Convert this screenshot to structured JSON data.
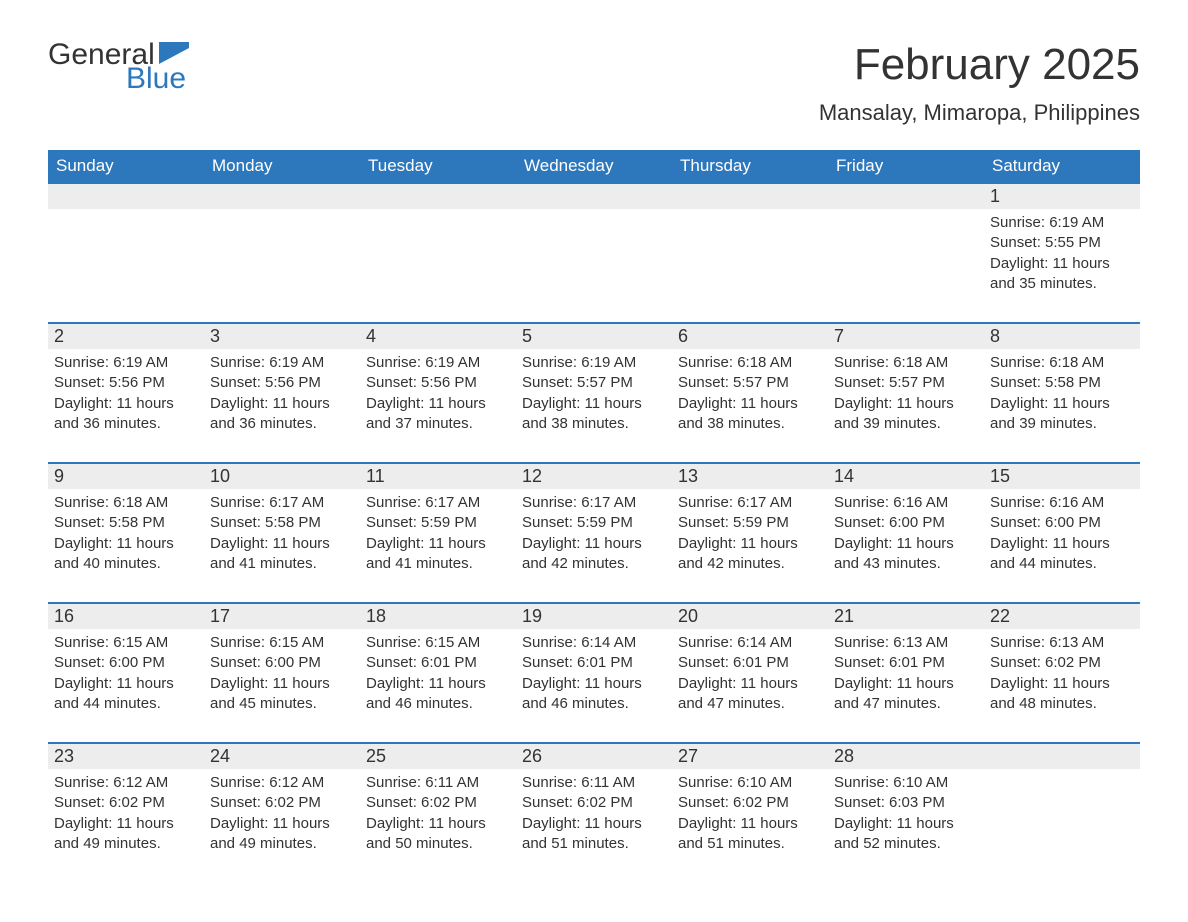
{
  "logo": {
    "general": "General",
    "blue": "Blue"
  },
  "title": "February 2025",
  "location": "Mansalay, Mimaropa, Philippines",
  "colors": {
    "header_bg": "#2d78bd",
    "header_text": "#ffffff",
    "daynum_bg": "#ededed",
    "row_border": "#2d78bd",
    "text": "#333333",
    "logo_blue": "#2d78bd"
  },
  "weekdays": [
    "Sunday",
    "Monday",
    "Tuesday",
    "Wednesday",
    "Thursday",
    "Friday",
    "Saturday"
  ],
  "layout": {
    "columns": 7,
    "rows": 5,
    "th_fontsize": 17,
    "daynum_fontsize": 18,
    "body_fontsize": 15,
    "title_fontsize": 44,
    "location_fontsize": 22
  },
  "weeks": [
    [
      {
        "day": "",
        "lines": []
      },
      {
        "day": "",
        "lines": []
      },
      {
        "day": "",
        "lines": []
      },
      {
        "day": "",
        "lines": []
      },
      {
        "day": "",
        "lines": []
      },
      {
        "day": "",
        "lines": []
      },
      {
        "day": "1",
        "lines": [
          "Sunrise: 6:19 AM",
          "Sunset: 5:55 PM",
          "Daylight: 11 hours and 35 minutes."
        ]
      }
    ],
    [
      {
        "day": "2",
        "lines": [
          "Sunrise: 6:19 AM",
          "Sunset: 5:56 PM",
          "Daylight: 11 hours and 36 minutes."
        ]
      },
      {
        "day": "3",
        "lines": [
          "Sunrise: 6:19 AM",
          "Sunset: 5:56 PM",
          "Daylight: 11 hours and 36 minutes."
        ]
      },
      {
        "day": "4",
        "lines": [
          "Sunrise: 6:19 AM",
          "Sunset: 5:56 PM",
          "Daylight: 11 hours and 37 minutes."
        ]
      },
      {
        "day": "5",
        "lines": [
          "Sunrise: 6:19 AM",
          "Sunset: 5:57 PM",
          "Daylight: 11 hours and 38 minutes."
        ]
      },
      {
        "day": "6",
        "lines": [
          "Sunrise: 6:18 AM",
          "Sunset: 5:57 PM",
          "Daylight: 11 hours and 38 minutes."
        ]
      },
      {
        "day": "7",
        "lines": [
          "Sunrise: 6:18 AM",
          "Sunset: 5:57 PM",
          "Daylight: 11 hours and 39 minutes."
        ]
      },
      {
        "day": "8",
        "lines": [
          "Sunrise: 6:18 AM",
          "Sunset: 5:58 PM",
          "Daylight: 11 hours and 39 minutes."
        ]
      }
    ],
    [
      {
        "day": "9",
        "lines": [
          "Sunrise: 6:18 AM",
          "Sunset: 5:58 PM",
          "Daylight: 11 hours and 40 minutes."
        ]
      },
      {
        "day": "10",
        "lines": [
          "Sunrise: 6:17 AM",
          "Sunset: 5:58 PM",
          "Daylight: 11 hours and 41 minutes."
        ]
      },
      {
        "day": "11",
        "lines": [
          "Sunrise: 6:17 AM",
          "Sunset: 5:59 PM",
          "Daylight: 11 hours and 41 minutes."
        ]
      },
      {
        "day": "12",
        "lines": [
          "Sunrise: 6:17 AM",
          "Sunset: 5:59 PM",
          "Daylight: 11 hours and 42 minutes."
        ]
      },
      {
        "day": "13",
        "lines": [
          "Sunrise: 6:17 AM",
          "Sunset: 5:59 PM",
          "Daylight: 11 hours and 42 minutes."
        ]
      },
      {
        "day": "14",
        "lines": [
          "Sunrise: 6:16 AM",
          "Sunset: 6:00 PM",
          "Daylight: 11 hours and 43 minutes."
        ]
      },
      {
        "day": "15",
        "lines": [
          "Sunrise: 6:16 AM",
          "Sunset: 6:00 PM",
          "Daylight: 11 hours and 44 minutes."
        ]
      }
    ],
    [
      {
        "day": "16",
        "lines": [
          "Sunrise: 6:15 AM",
          "Sunset: 6:00 PM",
          "Daylight: 11 hours and 44 minutes."
        ]
      },
      {
        "day": "17",
        "lines": [
          "Sunrise: 6:15 AM",
          "Sunset: 6:00 PM",
          "Daylight: 11 hours and 45 minutes."
        ]
      },
      {
        "day": "18",
        "lines": [
          "Sunrise: 6:15 AM",
          "Sunset: 6:01 PM",
          "Daylight: 11 hours and 46 minutes."
        ]
      },
      {
        "day": "19",
        "lines": [
          "Sunrise: 6:14 AM",
          "Sunset: 6:01 PM",
          "Daylight: 11 hours and 46 minutes."
        ]
      },
      {
        "day": "20",
        "lines": [
          "Sunrise: 6:14 AM",
          "Sunset: 6:01 PM",
          "Daylight: 11 hours and 47 minutes."
        ]
      },
      {
        "day": "21",
        "lines": [
          "Sunrise: 6:13 AM",
          "Sunset: 6:01 PM",
          "Daylight: 11 hours and 47 minutes."
        ]
      },
      {
        "day": "22",
        "lines": [
          "Sunrise: 6:13 AM",
          "Sunset: 6:02 PM",
          "Daylight: 11 hours and 48 minutes."
        ]
      }
    ],
    [
      {
        "day": "23",
        "lines": [
          "Sunrise: 6:12 AM",
          "Sunset: 6:02 PM",
          "Daylight: 11 hours and 49 minutes."
        ]
      },
      {
        "day": "24",
        "lines": [
          "Sunrise: 6:12 AM",
          "Sunset: 6:02 PM",
          "Daylight: 11 hours and 49 minutes."
        ]
      },
      {
        "day": "25",
        "lines": [
          "Sunrise: 6:11 AM",
          "Sunset: 6:02 PM",
          "Daylight: 11 hours and 50 minutes."
        ]
      },
      {
        "day": "26",
        "lines": [
          "Sunrise: 6:11 AM",
          "Sunset: 6:02 PM",
          "Daylight: 11 hours and 51 minutes."
        ]
      },
      {
        "day": "27",
        "lines": [
          "Sunrise: 6:10 AM",
          "Sunset: 6:02 PM",
          "Daylight: 11 hours and 51 minutes."
        ]
      },
      {
        "day": "28",
        "lines": [
          "Sunrise: 6:10 AM",
          "Sunset: 6:03 PM",
          "Daylight: 11 hours and 52 minutes."
        ]
      },
      {
        "day": "",
        "lines": []
      }
    ]
  ]
}
